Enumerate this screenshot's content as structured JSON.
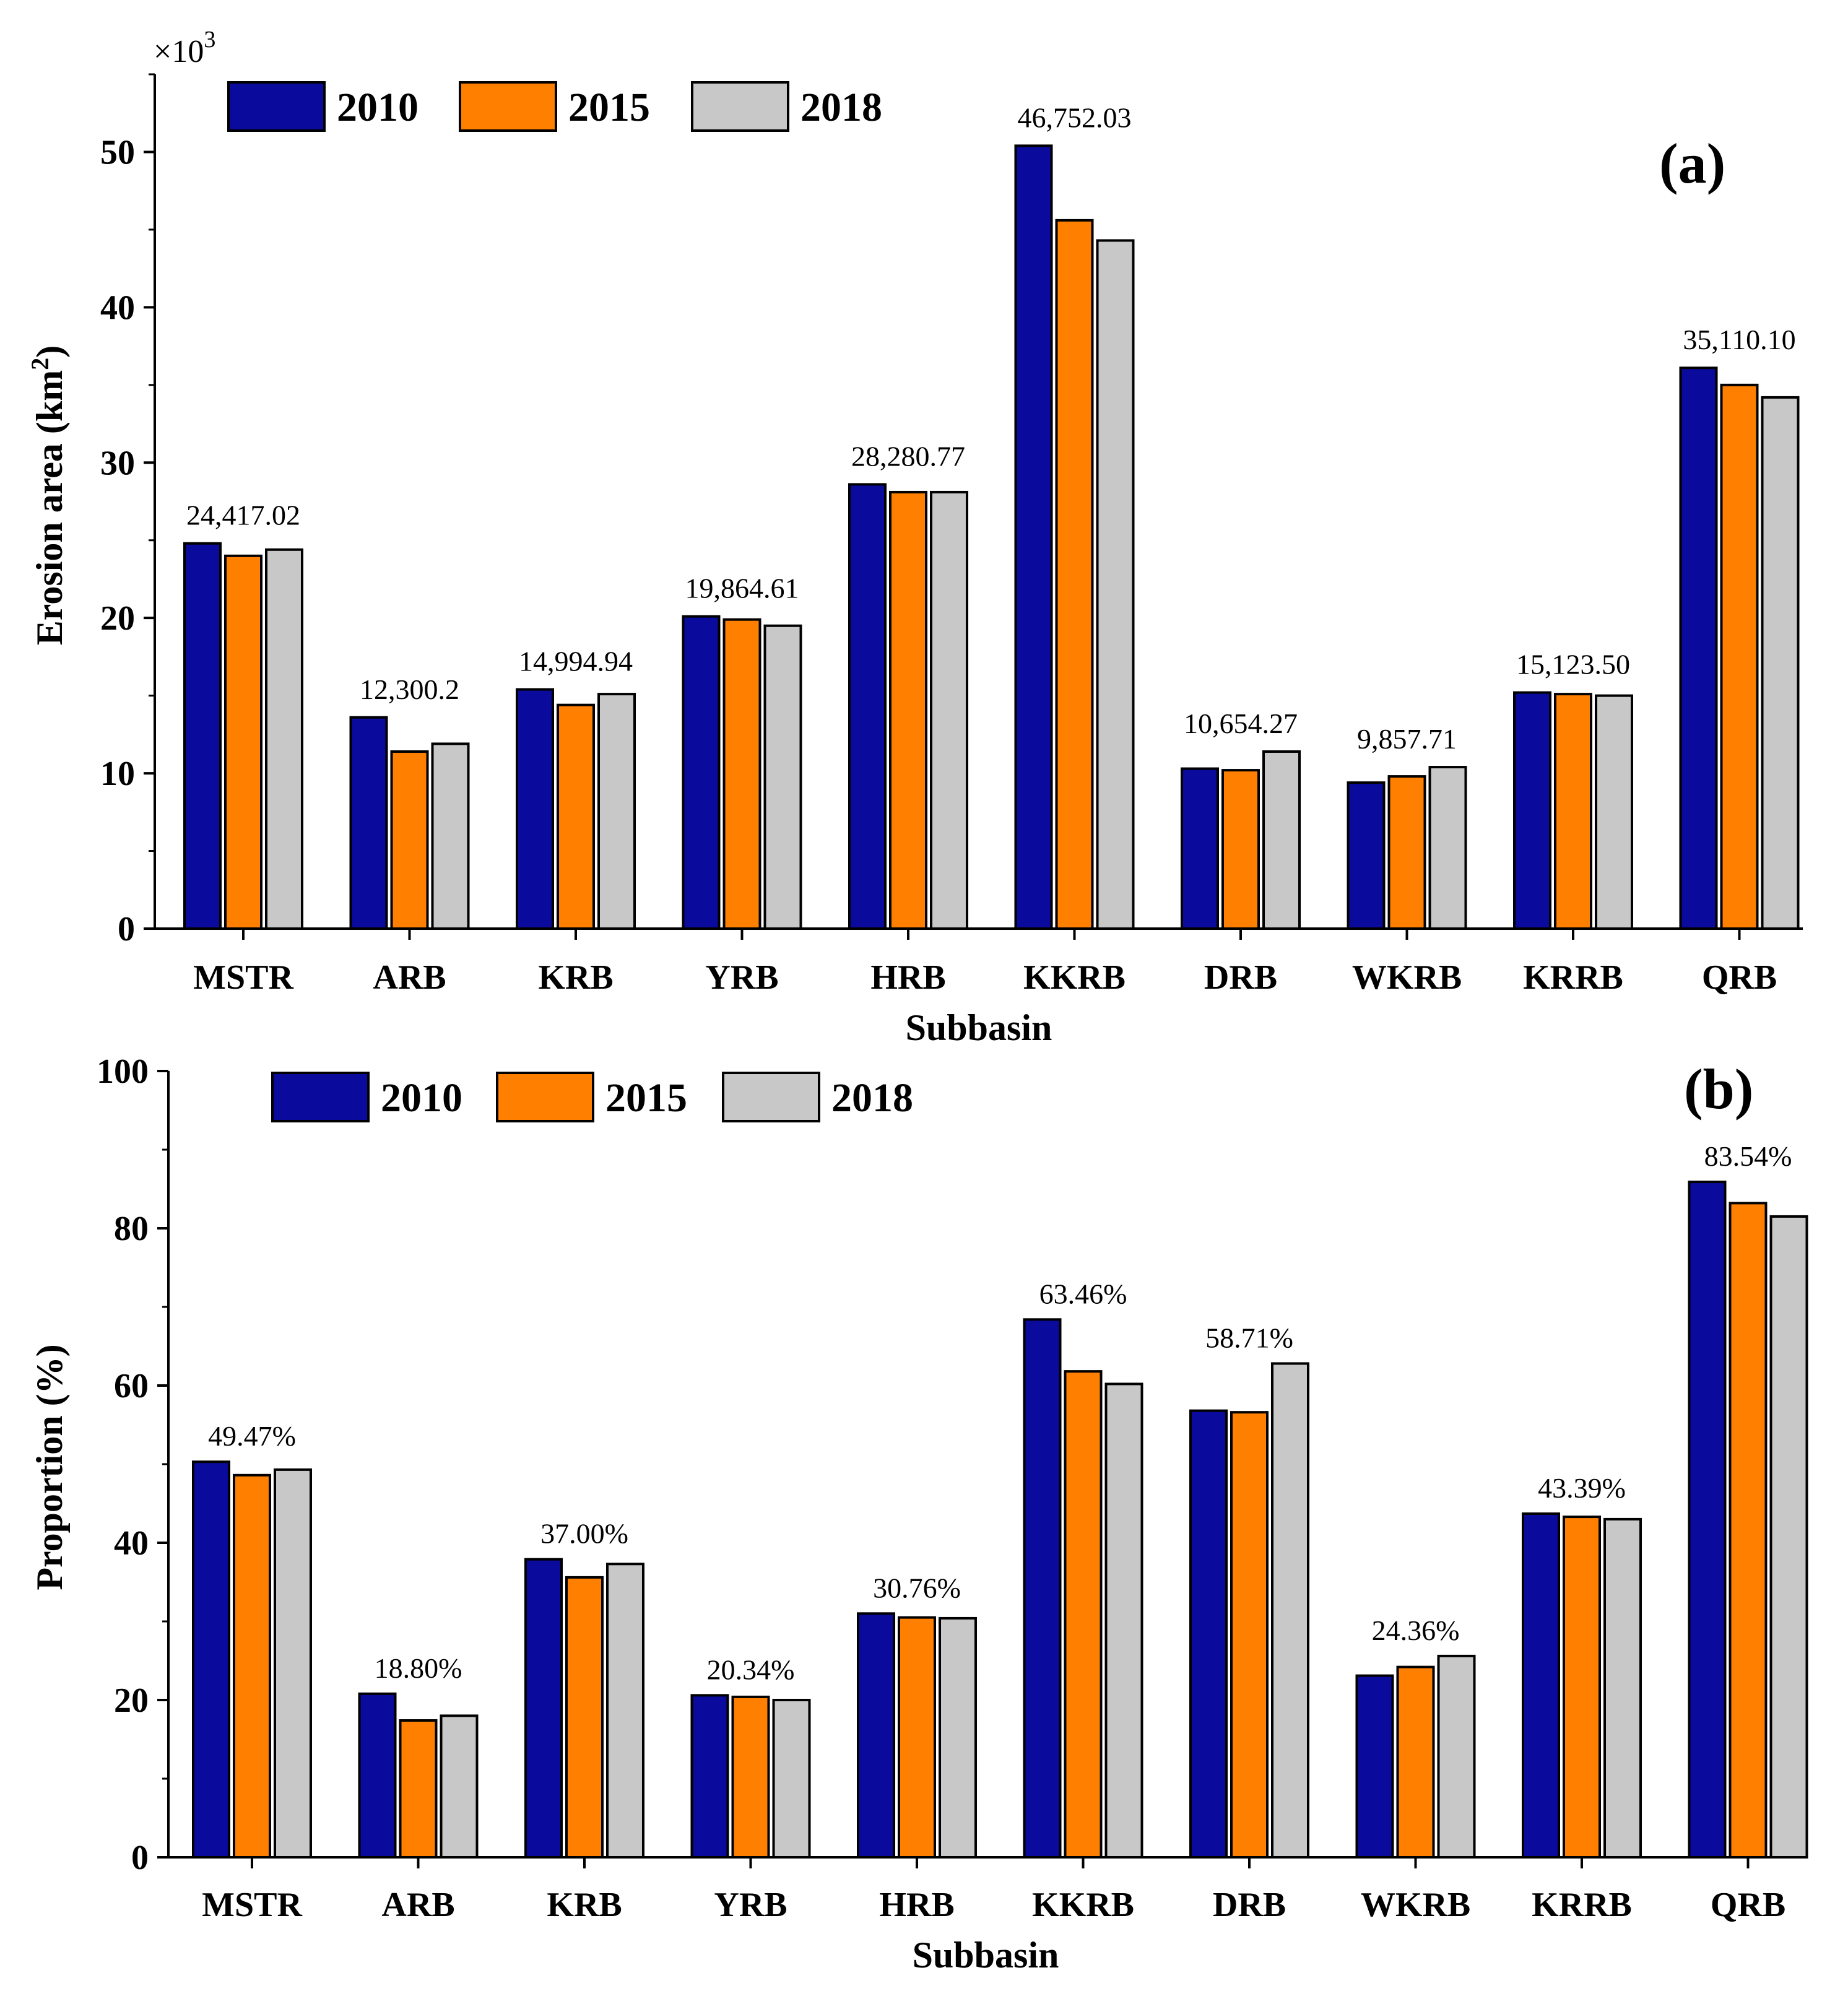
{
  "colors": {
    "2010": "#0a0a9c",
    "2015": "#ff8000",
    "2018": "#c8c8c8",
    "outline": "#000000"
  },
  "chart_data": [
    {
      "panel": "(a)",
      "type": "bar",
      "ylabel": "Erosion area (km",
      "ylabel_sup": "2",
      "ylabel_end": ")",
      "xlabel": "Subbasin",
      "multiplier_text": "×10",
      "multiplier_sup": "3",
      "ylim": [
        0,
        55
      ],
      "yticks": [
        0,
        10,
        20,
        30,
        40,
        50
      ],
      "categories": [
        "MSTR",
        "ARB",
        "KRB",
        "YRB",
        "HRB",
        "KKRB",
        "DRB",
        "WKRB",
        "KRRB",
        "QRB"
      ],
      "series": [
        {
          "name": "2010",
          "values": [
            24.8,
            13.6,
            15.4,
            20.1,
            28.6,
            50.4,
            10.3,
            9.4,
            15.2,
            36.1
          ]
        },
        {
          "name": "2015",
          "values": [
            24.0,
            11.4,
            14.4,
            19.9,
            28.1,
            45.6,
            10.2,
            9.8,
            15.1,
            35.0
          ]
        },
        {
          "name": "2018",
          "values": [
            24.4,
            11.9,
            15.1,
            19.5,
            28.1,
            44.3,
            11.4,
            10.4,
            15.0,
            34.2
          ]
        }
      ],
      "data_labels": [
        "24,417.02",
        "12,300.2",
        "14,994.94",
        "19,864.61",
        "28,280.77",
        "46,752.03",
        "10,654.27",
        "9,857.71",
        "15,123.50",
        "35,110.10"
      ]
    },
    {
      "panel": "(b)",
      "type": "bar",
      "ylabel": "Proportion (%)",
      "xlabel": "Subbasin",
      "ylim": [
        0,
        100
      ],
      "yticks": [
        0,
        20,
        40,
        60,
        80,
        100
      ],
      "categories": [
        "MSTR",
        "ARB",
        "KRB",
        "YRB",
        "HRB",
        "KKRB",
        "DRB",
        "WKRB",
        "KRRB",
        "QRB"
      ],
      "series": [
        {
          "name": "2010",
          "values": [
            50.3,
            20.8,
            37.9,
            20.6,
            31.0,
            68.4,
            56.8,
            23.1,
            43.7,
            85.9
          ]
        },
        {
          "name": "2015",
          "values": [
            48.6,
            17.4,
            35.6,
            20.4,
            30.5,
            61.8,
            56.6,
            24.2,
            43.3,
            83.2
          ]
        },
        {
          "name": "2018",
          "values": [
            49.3,
            18.0,
            37.3,
            20.0,
            30.4,
            60.2,
            62.8,
            25.6,
            43.0,
            81.5
          ]
        }
      ],
      "data_labels": [
        "49.47%",
        "18.80%",
        "37.00%",
        "20.34%",
        "30.76%",
        "63.46%",
        "58.71%",
        "24.36%",
        "43.39%",
        "83.54%"
      ]
    }
  ]
}
